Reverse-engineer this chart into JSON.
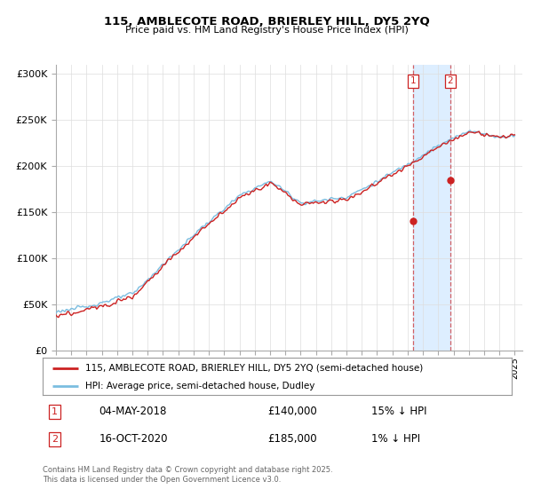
{
  "title1": "115, AMBLECOTE ROAD, BRIERLEY HILL, DY5 2YQ",
  "title2": "Price paid vs. HM Land Registry's House Price Index (HPI)",
  "ylim": [
    0,
    310000
  ],
  "yticks": [
    0,
    50000,
    100000,
    150000,
    200000,
    250000,
    300000
  ],
  "ytick_labels": [
    "£0",
    "£50K",
    "£100K",
    "£150K",
    "£200K",
    "£250K",
    "£300K"
  ],
  "hpi_color": "#7bbde0",
  "price_color": "#cc2222",
  "marker1_year": 2018.37,
  "marker1_price": 140000,
  "marker1_label": "04-MAY-2018",
  "marker1_value": "£140,000",
  "marker1_hpi": "15% ↓ HPI",
  "marker2_year": 2020.79,
  "marker2_price": 185000,
  "marker2_label": "16-OCT-2020",
  "marker2_value": "£185,000",
  "marker2_hpi": "1% ↓ HPI",
  "legend_line1": "115, AMBLECOTE ROAD, BRIERLEY HILL, DY5 2YQ (semi-detached house)",
  "legend_line2": "HPI: Average price, semi-detached house, Dudley",
  "footer": "Contains HM Land Registry data © Crown copyright and database right 2025.\nThis data is licensed under the Open Government Licence v3.0.",
  "highlight_color": "#ddeeff",
  "grid_color": "#dddddd",
  "bg_color": "white"
}
